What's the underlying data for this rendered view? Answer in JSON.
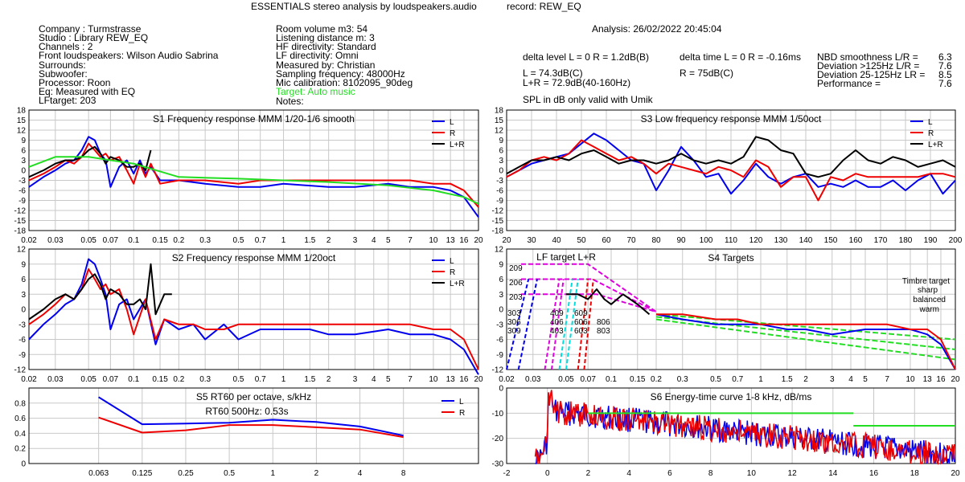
{
  "header": {
    "title": "ESSENTIALS stereo analysis by loudspeakers.audio",
    "record": "record: REW_EQ",
    "analysis": "Analysis: 26/02/2022 20:45:04"
  },
  "info_left": [
    "Company : Turmstrasse",
    "Studio : Library REW_EQ",
    "Channels : 2",
    "Front loudspeakers: Wilson Audio Sabrina",
    "Surrounds:",
    "Subwoofer:",
    "Processor: Roon",
    "Eq: Measured with EQ",
    "LFtarget: 203"
  ],
  "info_mid": [
    "Room volume m3: 54",
    "Listening distance m: 3",
    "HF directivity: Standard",
    "LF directivity: Omni",
    "Measured by: Christian",
    "Sampling frequency: 48000Hz",
    "Mic calibration: 8102095_90deg"
  ],
  "info_mid_target": "Target: Auto music",
  "info_mid_notes": "Notes:",
  "levels": {
    "delta_level": "delta level L = 0  R = 1.2dB(B)",
    "delta_time": "delta time  L = 0  R = -0.16ms",
    "L": "L =      74.3dB(C)",
    "R": "R =      75dB(C)",
    "LR": "L+R = 72.9dB(40-160Hz)",
    "spl_note": "SPL in dB only valid with Umik"
  },
  "metrics": [
    {
      "label": "NBD smoothness L/R =",
      "value": "6.3"
    },
    {
      "label": "Deviation >125Hz L/R =",
      "value": "7.6"
    },
    {
      "label": "Deviation 25-125Hz LR =",
      "value": "8.5"
    },
    {
      "label": "Performance =",
      "value": "7.6"
    }
  ],
  "colors": {
    "L": "#0000ee",
    "R": "#ee0000",
    "LR": "#000000",
    "target": "#22dd22",
    "grid": "#c8c8c8"
  },
  "chart_data": [
    {
      "id": "s1",
      "type": "line",
      "title": "S1  Frequency response MMM 1/20-1/6 smooth",
      "x_scale": "log",
      "xlim": [
        0.02,
        20
      ],
      "ylim": [
        -18,
        18
      ],
      "x_ticks": [
        0.02,
        0.03,
        0.05,
        0.07,
        0.1,
        0.15,
        0.2,
        0.3,
        0.5,
        0.7,
        1,
        1.5,
        2,
        3,
        4,
        5,
        7,
        10,
        13,
        16,
        20
      ],
      "y_ticks": [
        -18,
        -15,
        -12,
        -9,
        -6,
        -3,
        0,
        3,
        6,
        9,
        12,
        15,
        18
      ],
      "legend": [
        "L",
        "R",
        "L+R"
      ],
      "series": [
        {
          "name": "L",
          "x": [
            0.02,
            0.025,
            0.03,
            0.035,
            0.04,
            0.045,
            0.05,
            0.055,
            0.06,
            0.065,
            0.07,
            0.08,
            0.09,
            0.1,
            0.11,
            0.12,
            0.13,
            0.15,
            0.2,
            0.3,
            0.5,
            0.7,
            1,
            2,
            3,
            5,
            7,
            10,
            13,
            16,
            20
          ],
          "y": [
            -5,
            -2,
            0,
            2,
            3,
            6,
            10,
            9,
            5,
            3,
            -5,
            1,
            3,
            -1,
            3,
            -1,
            1,
            -3,
            -3,
            -4,
            -5,
            -5,
            -4,
            -5,
            -5,
            -4,
            -5,
            -5,
            -6,
            -8,
            -14
          ]
        },
        {
          "name": "R",
          "x": [
            0.02,
            0.025,
            0.03,
            0.035,
            0.04,
            0.045,
            0.05,
            0.055,
            0.06,
            0.065,
            0.07,
            0.08,
            0.09,
            0.1,
            0.11,
            0.12,
            0.13,
            0.15,
            0.2,
            0.3,
            0.5,
            0.7,
            1,
            2,
            3,
            5,
            7,
            10,
            13,
            16,
            20
          ],
          "y": [
            -3,
            -1,
            1,
            3,
            2,
            4,
            8,
            6,
            4,
            5,
            3,
            4,
            0,
            -4,
            2,
            -2,
            2,
            -4,
            -3,
            -3,
            -4,
            -3,
            -3,
            -3,
            -3,
            -3,
            -3,
            -4,
            -4,
            -6,
            -11
          ]
        },
        {
          "name": "L+R",
          "x": [
            0.02,
            0.025,
            0.03,
            0.035,
            0.04,
            0.045,
            0.05,
            0.055,
            0.06,
            0.065,
            0.07,
            0.08,
            0.09,
            0.1,
            0.11,
            0.12,
            0.13
          ],
          "y": [
            -2,
            0,
            2,
            3,
            3,
            4,
            6,
            7,
            5,
            2,
            4,
            3,
            1,
            1,
            2,
            0,
            6
          ]
        },
        {
          "name": "target",
          "x": [
            0.02,
            0.03,
            0.05,
            0.1,
            0.2,
            0.5,
            1,
            2,
            5,
            10,
            16,
            20
          ],
          "y": [
            1,
            4,
            4,
            2,
            -2,
            -2.5,
            -3,
            -3.5,
            -4.5,
            -6,
            -8,
            -10
          ]
        }
      ]
    },
    {
      "id": "s3",
      "type": "line",
      "title": "S3  Low frequency response MMM 1/50oct",
      "x_scale": "linear",
      "xlim": [
        20,
        200
      ],
      "ylim": [
        -18,
        18
      ],
      "x_ticks": [
        20,
        30,
        40,
        50,
        60,
        70,
        80,
        90,
        100,
        110,
        120,
        130,
        140,
        150,
        160,
        170,
        180,
        190,
        200
      ],
      "y_ticks": [
        -18,
        -15,
        -12,
        -9,
        -6,
        -3,
        0,
        3,
        6,
        9,
        12,
        15,
        18
      ],
      "legend": [
        "L",
        "R",
        "L+R"
      ],
      "series": [
        {
          "name": "L",
          "x": [
            20,
            25,
            30,
            35,
            40,
            45,
            50,
            55,
            60,
            65,
            70,
            75,
            80,
            85,
            90,
            95,
            100,
            105,
            110,
            115,
            120,
            125,
            130,
            135,
            140,
            145,
            150,
            155,
            160,
            165,
            170,
            175,
            180,
            185,
            190,
            195,
            200
          ],
          "y": [
            -2,
            0,
            2,
            3,
            4,
            5,
            8,
            11,
            9,
            6,
            3,
            2,
            -6,
            0,
            7,
            3,
            -2,
            -1,
            -7,
            -3,
            2,
            -2,
            -4,
            -2,
            -1,
            -5,
            -4,
            -5,
            -3,
            -5,
            -5,
            -3,
            -6,
            -3,
            -1,
            -7,
            -3
          ]
        },
        {
          "name": "R",
          "x": [
            20,
            25,
            30,
            35,
            40,
            45,
            50,
            55,
            60,
            65,
            70,
            75,
            80,
            85,
            90,
            95,
            100,
            105,
            110,
            115,
            120,
            125,
            130,
            135,
            140,
            145,
            150,
            155,
            160,
            165,
            170,
            175,
            180,
            185,
            190,
            195,
            200
          ],
          "y": [
            -2,
            0,
            3,
            4,
            3,
            5,
            9,
            7,
            5,
            3,
            4,
            2,
            -1,
            2,
            1,
            0,
            -1,
            1,
            0,
            -2,
            3,
            1,
            -5,
            -2,
            -2,
            -9,
            -2,
            -3,
            -1,
            -2,
            -2,
            -2,
            -2,
            -2,
            -1,
            -1,
            -2
          ]
        },
        {
          "name": "L+R",
          "x": [
            20,
            25,
            30,
            35,
            40,
            45,
            50,
            55,
            60,
            65,
            70,
            75,
            80,
            85,
            90,
            95,
            100,
            105,
            110,
            115,
            120,
            125,
            130,
            135,
            140,
            145,
            150,
            155,
            160,
            165,
            170,
            175,
            180,
            185,
            190,
            195,
            200
          ],
          "y": [
            -1,
            1,
            3,
            3,
            4,
            3,
            5,
            6,
            4,
            2,
            3,
            3,
            2,
            3,
            5,
            3,
            2,
            3,
            2,
            4,
            10,
            9,
            6,
            5,
            -1,
            -2,
            -1,
            3,
            6,
            3,
            2,
            4,
            3,
            1,
            2,
            3,
            1
          ]
        }
      ]
    },
    {
      "id": "s2",
      "type": "line",
      "title": "S2  Frequency response MMM 1/20oct",
      "x_scale": "log",
      "xlim": [
        0.02,
        20
      ],
      "ylim": [
        -12,
        12
      ],
      "x_ticks": [
        0.02,
        0.03,
        0.05,
        0.07,
        0.1,
        0.15,
        0.2,
        0.3,
        0.5,
        0.7,
        1,
        1.5,
        2,
        3,
        4,
        5,
        7,
        10,
        13,
        16,
        20
      ],
      "y_ticks": [
        -12,
        -9,
        -6,
        -3,
        0,
        3,
        6,
        9,
        12
      ],
      "legend": [
        "L",
        "R",
        "L+R"
      ],
      "series": [
        {
          "name": "L",
          "x": [
            0.02,
            0.025,
            0.03,
            0.035,
            0.04,
            0.045,
            0.05,
            0.055,
            0.06,
            0.065,
            0.07,
            0.08,
            0.09,
            0.1,
            0.12,
            0.14,
            0.16,
            0.2,
            0.25,
            0.3,
            0.4,
            0.5,
            0.7,
            1,
            1.5,
            2,
            3,
            5,
            7,
            10,
            13,
            16,
            20
          ],
          "y": [
            -6,
            -3,
            -1,
            1,
            2,
            5,
            10,
            9,
            6,
            3,
            -4,
            1,
            2,
            -2,
            2,
            -7,
            -2,
            -4,
            -3,
            -6,
            -3,
            -6,
            -4,
            -4,
            -4,
            -5,
            -5,
            -4,
            -5,
            -5,
            -6,
            -8,
            -13
          ]
        },
        {
          "name": "R",
          "x": [
            0.02,
            0.025,
            0.03,
            0.035,
            0.04,
            0.045,
            0.05,
            0.055,
            0.06,
            0.065,
            0.07,
            0.08,
            0.09,
            0.1,
            0.12,
            0.14,
            0.16,
            0.2,
            0.25,
            0.3,
            0.4,
            0.5,
            0.7,
            1,
            1.5,
            2,
            3,
            5,
            7,
            10,
            13,
            16,
            20
          ],
          "y": [
            -3,
            -1,
            1,
            3,
            2,
            4,
            8,
            6,
            4,
            5,
            3,
            4,
            0,
            -5,
            2,
            -6,
            -2,
            -3,
            -3,
            -4,
            -4,
            -3,
            -3,
            -3,
            -3,
            -3,
            -3,
            -3,
            -3,
            -4,
            -4,
            -6,
            -12
          ]
        },
        {
          "name": "L+R",
          "x": [
            0.02,
            0.025,
            0.03,
            0.035,
            0.04,
            0.045,
            0.05,
            0.055,
            0.06,
            0.065,
            0.07,
            0.08,
            0.09,
            0.1,
            0.11,
            0.12,
            0.13,
            0.14,
            0.16,
            0.18
          ],
          "y": [
            -2,
            0,
            2,
            3,
            2,
            4,
            6,
            7,
            5,
            2,
            4,
            3,
            1,
            1,
            2,
            0,
            9,
            -1,
            3,
            3
          ]
        }
      ]
    },
    {
      "id": "s4",
      "type": "line",
      "title": "S4 Targets",
      "x_scale": "log",
      "xlim": [
        0.02,
        20
      ],
      "ylim": [
        -12,
        12
      ],
      "x_ticks": [
        0.02,
        0.03,
        0.05,
        0.07,
        0.1,
        0.15,
        0.2,
        0.3,
        0.5,
        0.7,
        1,
        1.5,
        2,
        3,
        4,
        5,
        7,
        10,
        13,
        16,
        20
      ],
      "y_ticks": [
        -12,
        -9,
        -6,
        -3,
        0,
        3,
        6,
        9,
        12
      ],
      "labels": {
        "lf_target": "LF target L+R",
        "timbre": "Timbre target",
        "sharp": "sharp",
        "balanced": "balanced",
        "warm": "warm"
      },
      "lf_codes_red": [
        "209",
        "206",
        "203"
      ],
      "lf_codes_blue": [
        "303",
        "306",
        "309"
      ],
      "lf_codes_magenta": [
        "409",
        "406",
        "403"
      ],
      "lf_codes_cyan": [
        "609",
        "606",
        "603"
      ],
      "lf_codes_red2": [
        "806",
        "803"
      ],
      "series": [
        {
          "name": "L",
          "x": [
            0.2,
            0.3,
            0.5,
            0.7,
            1,
            1.5,
            2,
            3,
            5,
            7,
            10,
            13,
            16,
            20
          ],
          "y": [
            -1,
            -2,
            -3,
            -3,
            -3,
            -4,
            -4,
            -5,
            -4,
            -4,
            -4,
            -5,
            -7,
            -12
          ]
        },
        {
          "name": "R",
          "x": [
            0.2,
            0.3,
            0.5,
            0.7,
            1,
            1.5,
            2,
            3,
            5,
            7,
            10,
            13,
            16,
            20
          ],
          "y": [
            -1,
            -1,
            -2,
            -2,
            -3,
            -3,
            -3,
            -3,
            -3,
            -3,
            -4,
            -4,
            -6,
            -12
          ]
        },
        {
          "name": "L+R",
          "x": [
            0.05,
            0.06,
            0.07,
            0.08,
            0.09,
            0.1,
            0.12,
            0.15,
            0.18
          ],
          "y": [
            3,
            3,
            2,
            4,
            2,
            1,
            3,
            1,
            -1
          ]
        }
      ]
    },
    {
      "id": "s5",
      "type": "line",
      "title": "S5  RT60 per octave, s/kHz",
      "x_scale": "categorical",
      "categories": [
        "0.063",
        "0.125",
        "0.25",
        "0.5",
        "1",
        "2",
        "4",
        "8"
      ],
      "ylim": [
        0,
        1
      ],
      "y_ticks": [
        0,
        0.2,
        0.4,
        0.6,
        0.8
      ],
      "annotation": "RT60 500Hz: 0.53s",
      "legend": [
        "L",
        "R"
      ],
      "series": [
        {
          "name": "L",
          "values": [
            0.88,
            0.52,
            0.53,
            0.54,
            0.58,
            0.55,
            0.49,
            0.37
          ]
        },
        {
          "name": "R",
          "values": [
            0.61,
            0.41,
            0.44,
            0.51,
            0.51,
            0.48,
            0.45,
            0.35
          ]
        }
      ]
    },
    {
      "id": "s6",
      "type": "line",
      "title": "S6  Energy-time curve 1-8 kHz, dB/ms",
      "x_scale": "linear",
      "xlim": [
        -2,
        20
      ],
      "ylim": [
        -30,
        0
      ],
      "x_ticks": [
        -2,
        0,
        2,
        4,
        6,
        8,
        10,
        12,
        14,
        16,
        18,
        20
      ],
      "y_ticks": [
        -30,
        -20,
        -10,
        0
      ],
      "targets": [
        {
          "x": [
            2,
            15
          ],
          "y": -10
        },
        {
          "x": [
            15,
            20
          ],
          "y": -15
        }
      ]
    }
  ]
}
